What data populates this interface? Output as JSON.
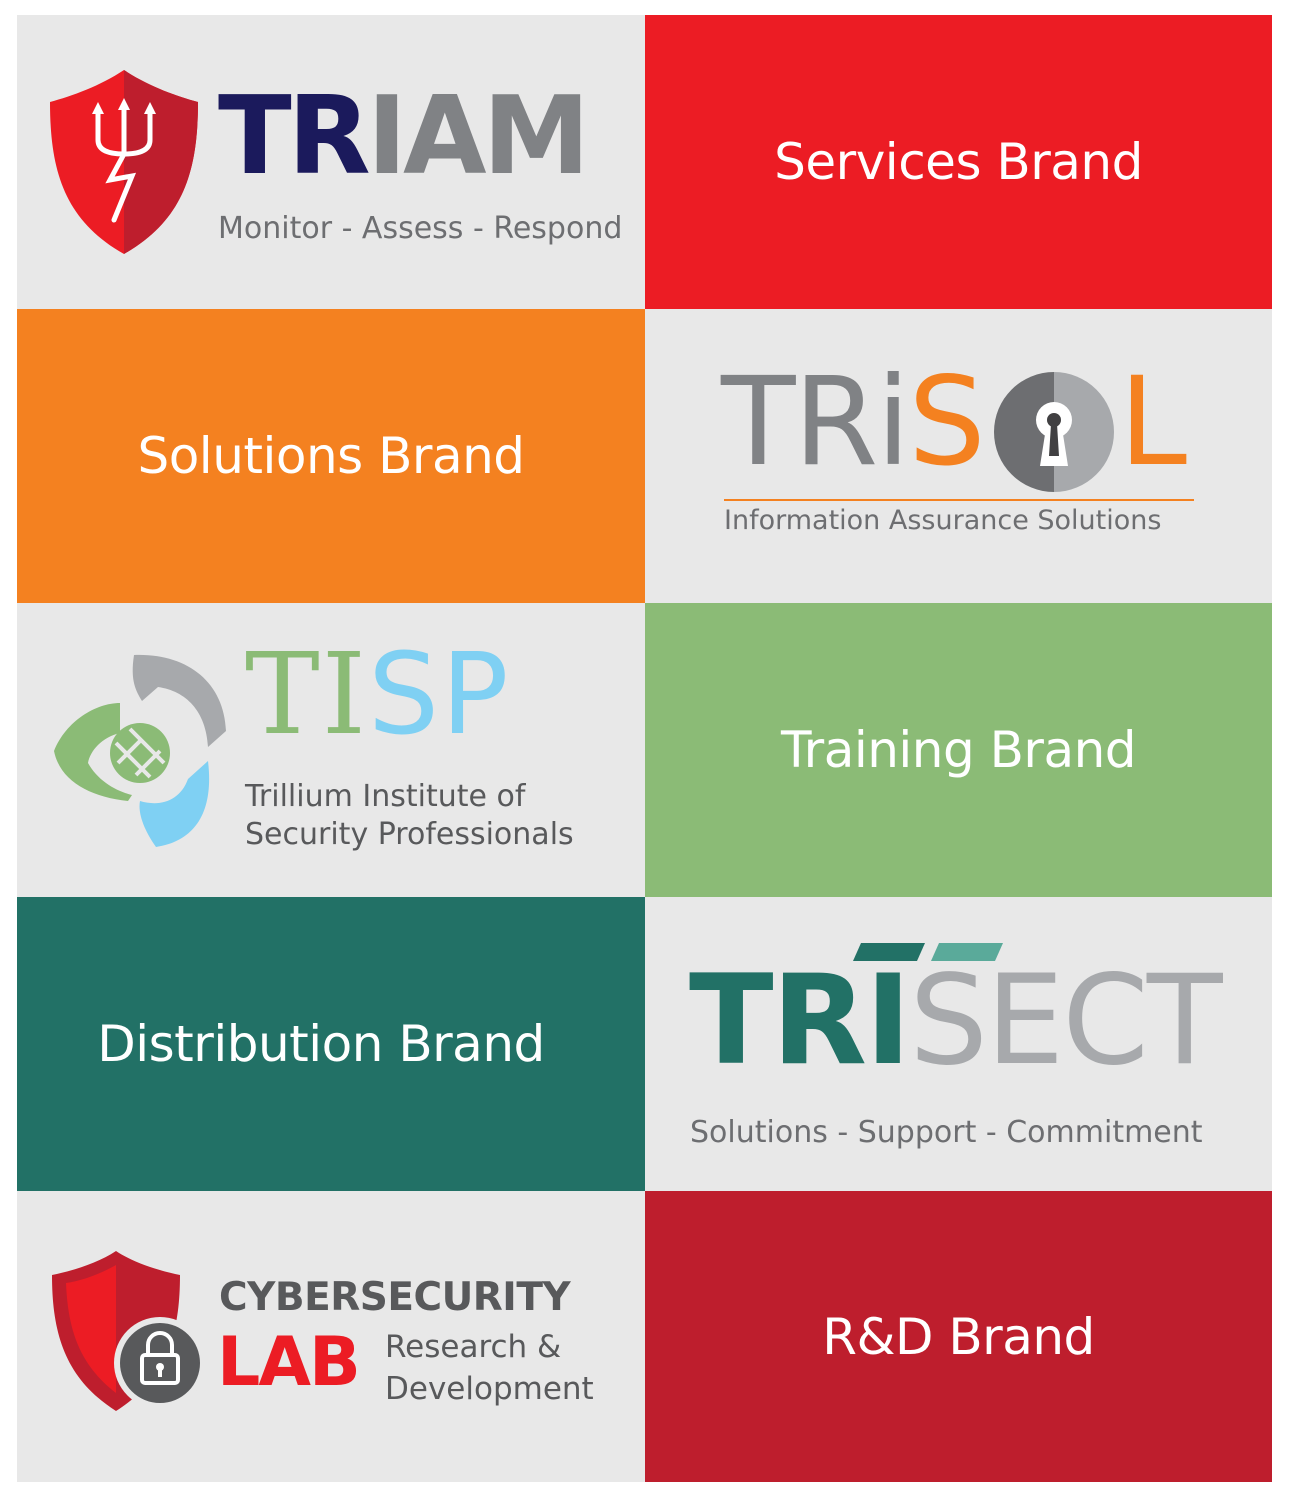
{
  "colors": {
    "light_bg": "#e8e8e8",
    "services_red": "#ec1c24",
    "solutions_orange": "#f48120",
    "training_green": "#8bbb76",
    "distribution_teal": "#227166",
    "rd_red": "#be1e2d",
    "navy": "#1b1a5c",
    "gray": "#808285",
    "sky": "#7fd0f3",
    "teal_light": "#5aaa9a"
  },
  "rows": [
    {
      "left": {
        "kind": "logo",
        "logo": "triam"
      },
      "right": {
        "kind": "brand",
        "label": "Services Brand"
      }
    },
    {
      "left": {
        "kind": "brand",
        "label": "Solutions Brand"
      },
      "right": {
        "kind": "logo",
        "logo": "trisol"
      }
    },
    {
      "left": {
        "kind": "logo",
        "logo": "tisp"
      },
      "right": {
        "kind": "brand",
        "label": "Training Brand"
      }
    },
    {
      "left": {
        "kind": "brand",
        "label": "Distribution Brand"
      },
      "right": {
        "kind": "logo",
        "logo": "trisect"
      }
    },
    {
      "left": {
        "kind": "logo",
        "logo": "cyberlab"
      },
      "right": {
        "kind": "brand",
        "label": "R&D Brand"
      }
    }
  ],
  "logos": {
    "triam": {
      "tr": "TR",
      "iam": "IAM",
      "tagline": "Monitor - Assess - Respond",
      "icon": "trident-shield-icon"
    },
    "trisol": {
      "tri": "TRi",
      "s": "S",
      "l": "L",
      "tagline": "Information Assurance Solutions",
      "icon": "keyhole-icon"
    },
    "tisp": {
      "ti": "TI",
      "sp": "SP",
      "line1": "Trillium Institute of",
      "line2": "Security Professionals",
      "icon": "trillium-globe-icon"
    },
    "trisect": {
      "tri": "TRI",
      "sect": "SECT",
      "tagline": "Solutions - Support - Commitment"
    },
    "cyberlab": {
      "title": "CYBERSECURITY",
      "lab": "LAB",
      "line1": "Research &",
      "line2": "Development",
      "icon": "shield-padlock-icon"
    }
  }
}
